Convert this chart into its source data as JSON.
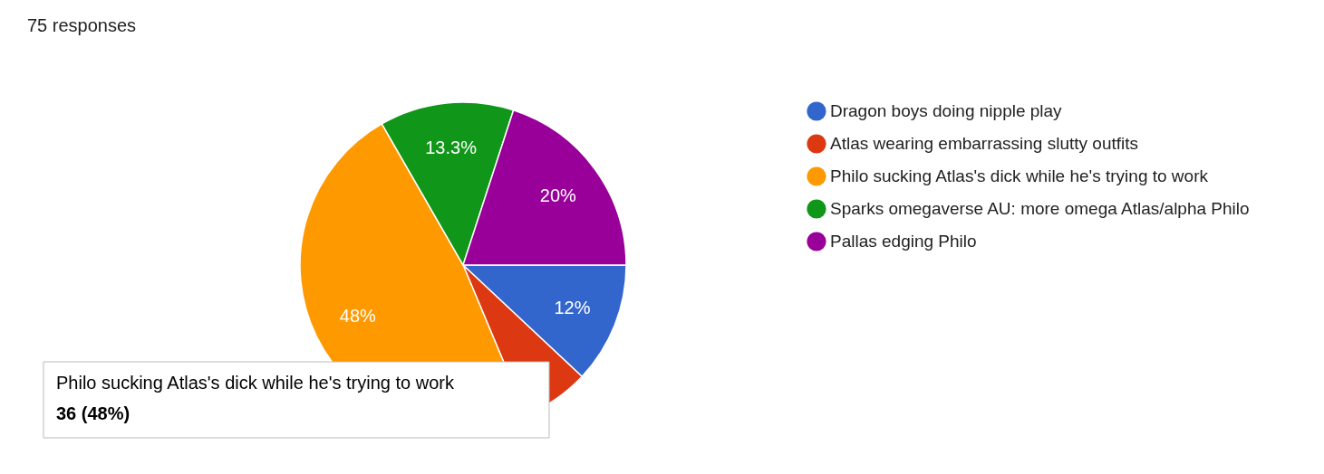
{
  "chart_data": {
    "type": "pie",
    "title": "75 responses",
    "categories": [
      "Dragon boys doing nipple play",
      "Atlas wearing embarrassing slutty outfits",
      "Philo sucking Atlas's dick while he's trying to work",
      "Sparks omegaverse AU: more omega Atlas/alpha Philo",
      "Pallas edging Philo"
    ],
    "values": [
      12,
      6.7,
      48,
      13.3,
      20
    ],
    "colors": [
      "#3366cc",
      "#dc3912",
      "#ff9900",
      "#109618",
      "#990099"
    ],
    "value_labels": [
      "12%",
      null,
      "48%",
      "13.3%",
      "20%"
    ],
    "legend": "right",
    "annotations": [
      "Philo sucking Atlas's dick while he's trying to work",
      "36 (48%)"
    ]
  }
}
